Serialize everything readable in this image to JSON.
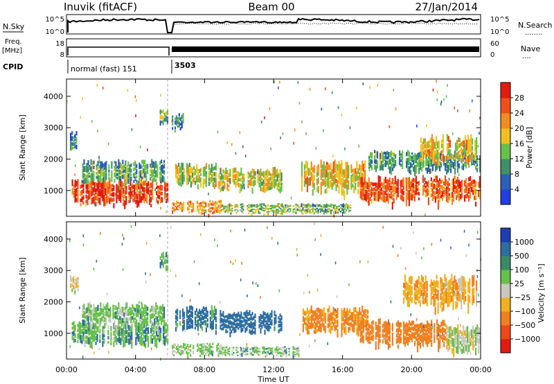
{
  "header": {
    "station": "Inuvik (fitACF)",
    "beam": "Beam 00",
    "date": "27/Jan/2014"
  },
  "left_labels": {
    "nsky": "N.Sky",
    "freq_top": "Freq.",
    "freq_unit": "[MHz]",
    "cpid": "CPID"
  },
  "right_labels": {
    "nsearch": "N.Search",
    "nave": "Nave",
    "dots1": "........",
    "dots2": "...."
  },
  "noise_axis": {
    "left_ticks": [
      "10^5",
      "10^0"
    ],
    "right_ticks": [
      "10^5",
      "10^0"
    ]
  },
  "freq_axis": {
    "left_ticks": [
      "18",
      "8"
    ],
    "right_ticks": [
      "60",
      "0"
    ]
  },
  "cpid": {
    "segments": [
      "normal (fast) 151",
      "3503"
    ]
  },
  "axes": {
    "ylabel": "Slant Range [km]",
    "xlabel": "Time UT",
    "y_ticks": [
      "1000",
      "2000",
      "3000",
      "4000"
    ],
    "x_ticks": [
      "00:00",
      "04:00",
      "08:00",
      "12:00",
      "16:00",
      "20:00",
      "00:00"
    ]
  },
  "colorbars": {
    "power": {
      "label": "Power [dB]",
      "ticks": [
        "4",
        "8",
        "12",
        "16",
        "20",
        "24",
        "28"
      ],
      "colors": [
        "#1f3fe0",
        "#2b5fb8",
        "#3f8f6a",
        "#66c04a",
        "#f0c020",
        "#f08c20",
        "#f05018",
        "#e21a10"
      ]
    },
    "velocity": {
      "label": "Velocity [m s⁻¹]",
      "ticks": [
        "1000",
        "500",
        "100",
        "25",
        "−25",
        "−100",
        "−500",
        "−1000"
      ],
      "colors": [
        "#1f3fb0",
        "#2e6ea0",
        "#3a8a6a",
        "#66c04a",
        "#c8c8c0",
        "#f0b020",
        "#f08020",
        "#f04818",
        "#e21a10"
      ]
    }
  },
  "chart_data": {
    "type": "heatmap",
    "title": "Inuvik (fitACF)",
    "xlabel": "Time UT",
    "ylabel": "Slant Range [km]",
    "xlim": [
      "00:00",
      "24:00"
    ],
    "ylim": [
      180,
      4550
    ],
    "panels": [
      {
        "quantity": "Power [dB]",
        "scale": [
          0,
          30
        ],
        "regions": [
          {
            "t0": 0.3,
            "t1": 5.9,
            "r0": 420,
            "r1": 1400,
            "v": 26
          },
          {
            "t0": 0.9,
            "t1": 5.7,
            "r0": 1100,
            "r1": 2000,
            "v": 10
          },
          {
            "t0": 0.2,
            "t1": 0.7,
            "r0": 2200,
            "r1": 2900,
            "v": 8
          },
          {
            "t0": 5.4,
            "t1": 5.9,
            "r0": 3000,
            "r1": 3600,
            "v": 12
          },
          {
            "t0": 6.1,
            "t1": 9.0,
            "r0": 250,
            "r1": 700,
            "v": 20
          },
          {
            "t0": 6.3,
            "t1": 8.7,
            "r0": 1000,
            "r1": 1900,
            "v": 14
          },
          {
            "t0": 6.1,
            "t1": 6.8,
            "r0": 2800,
            "r1": 3500,
            "v": 8
          },
          {
            "t0": 9.0,
            "t1": 13.5,
            "r0": 250,
            "r1": 600,
            "v": 14
          },
          {
            "t0": 8.8,
            "t1": 12.5,
            "r0": 900,
            "r1": 1750,
            "v": 16
          },
          {
            "t0": 13.6,
            "t1": 17.5,
            "r0": 700,
            "r1": 2000,
            "v": 18
          },
          {
            "t0": 13.5,
            "t1": 16.5,
            "r0": 250,
            "r1": 600,
            "v": 12
          },
          {
            "t0": 17.0,
            "t1": 24.0,
            "r0": 450,
            "r1": 1500,
            "v": 24
          },
          {
            "t0": 17.5,
            "t1": 24.0,
            "r0": 1500,
            "r1": 2300,
            "v": 10
          },
          {
            "t0": 20.5,
            "t1": 23.8,
            "r0": 1700,
            "r1": 2800,
            "v": 18
          }
        ]
      },
      {
        "quantity": "Velocity [m s⁻¹]",
        "scale": [
          -1000,
          1000
        ],
        "regions": [
          {
            "t0": 0.3,
            "t1": 5.9,
            "r0": 450,
            "r1": 1400,
            "v": 80
          },
          {
            "t0": 0.9,
            "t1": 5.7,
            "r0": 1100,
            "r1": 2000,
            "v": 60
          },
          {
            "t0": 0.2,
            "t1": 0.7,
            "r0": 2200,
            "r1": 2900,
            "v": -20
          },
          {
            "t0": 5.4,
            "t1": 5.9,
            "r0": 3000,
            "r1": 3600,
            "v": 80
          },
          {
            "t0": 6.1,
            "t1": 9.0,
            "r0": 250,
            "r1": 700,
            "v": 40
          },
          {
            "t0": 6.3,
            "t1": 8.7,
            "r0": 1000,
            "r1": 1900,
            "v": 150
          },
          {
            "t0": 8.8,
            "t1": 12.5,
            "r0": 900,
            "r1": 1750,
            "v": 200
          },
          {
            "t0": 9.0,
            "t1": 13.5,
            "r0": 250,
            "r1": 600,
            "v": 60
          },
          {
            "t0": 13.6,
            "t1": 17.5,
            "r0": 900,
            "r1": 1900,
            "v": -120
          },
          {
            "t0": 17.0,
            "t1": 22.0,
            "r0": 450,
            "r1": 1500,
            "v": -200
          },
          {
            "t0": 22.0,
            "t1": 24.0,
            "r0": 250,
            "r1": 1300,
            "v": 10
          },
          {
            "t0": 19.5,
            "t1": 23.8,
            "r0": 1600,
            "r1": 2900,
            "v": -80
          }
        ]
      }
    ]
  }
}
